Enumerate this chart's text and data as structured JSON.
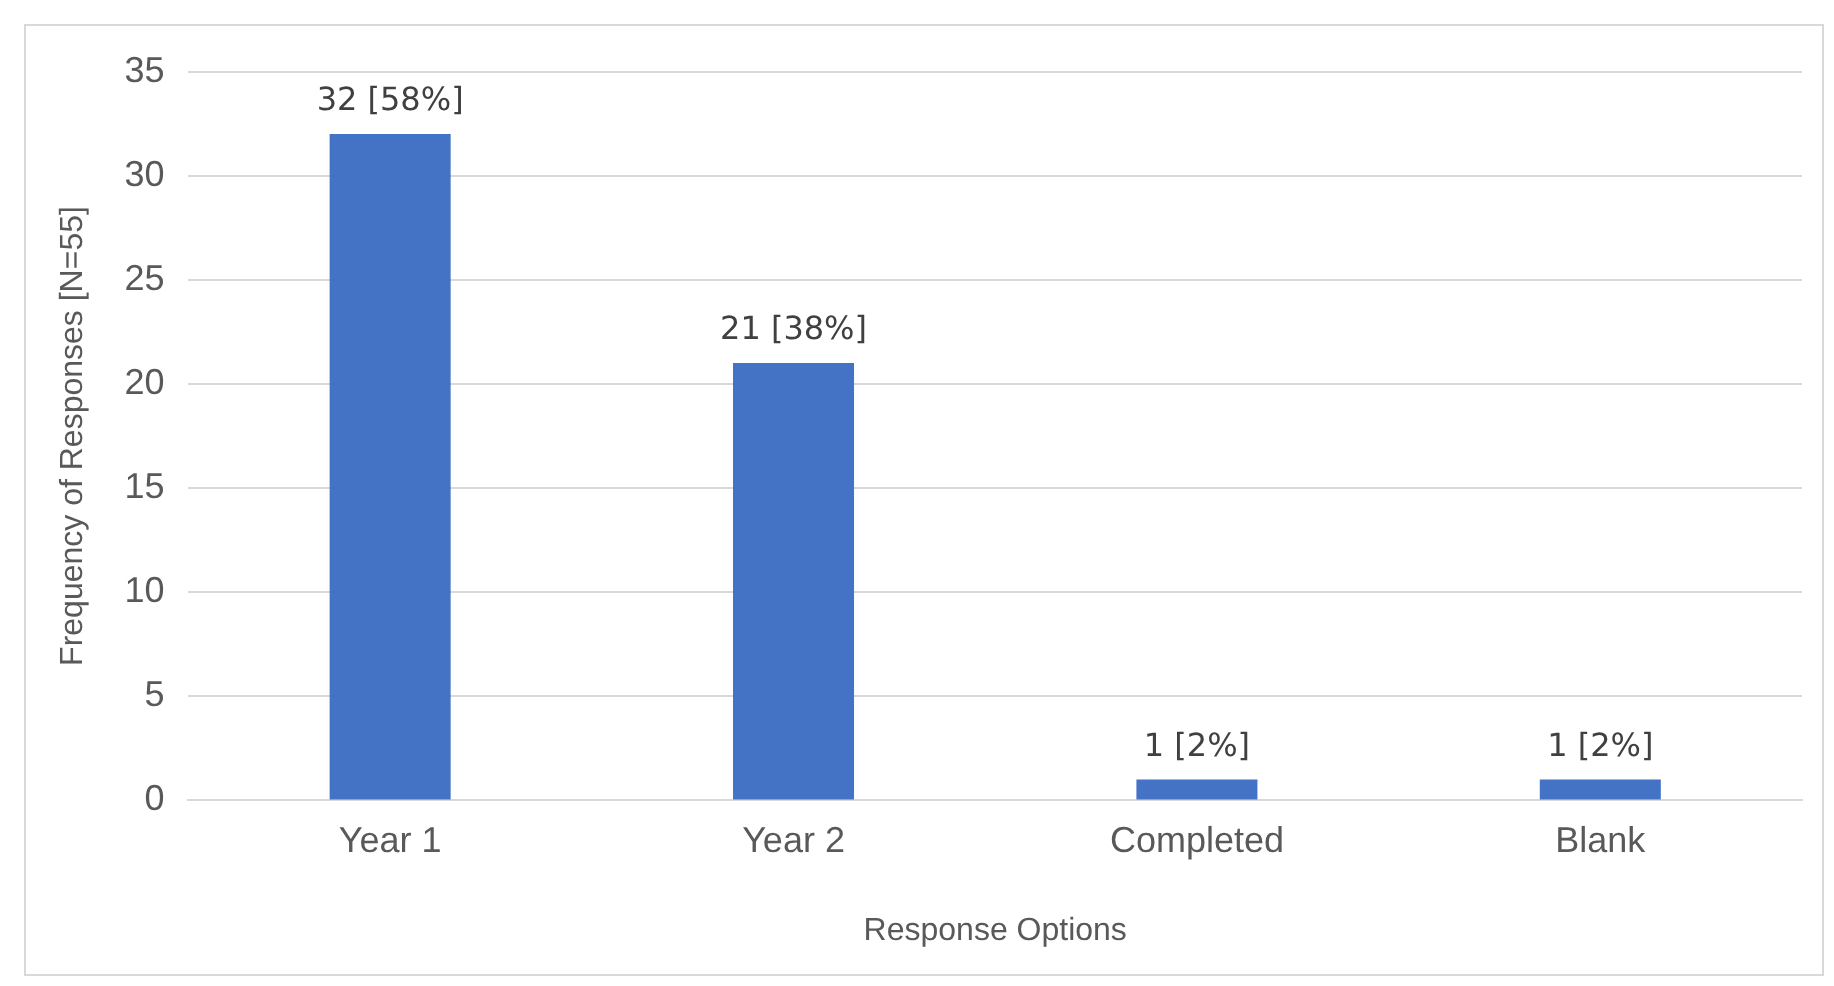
{
  "chart_data": {
    "type": "bar",
    "xlabel": "Response Options",
    "ylabel": "Frequency of Responses [N=55]",
    "categories": [
      "Year 1",
      "Year 2",
      "Completed",
      "Blank"
    ],
    "values": [
      32,
      21,
      1,
      1
    ],
    "value_labels": [
      "32 [58%]",
      "21 [38%]",
      "1 [2%]",
      "1 [2%]"
    ],
    "color": "#4472c4",
    "ylim": [
      0,
      35
    ],
    "yticks": [
      0,
      5,
      10,
      15,
      20,
      25,
      30,
      35
    ],
    "grid": "y",
    "legend": false
  }
}
